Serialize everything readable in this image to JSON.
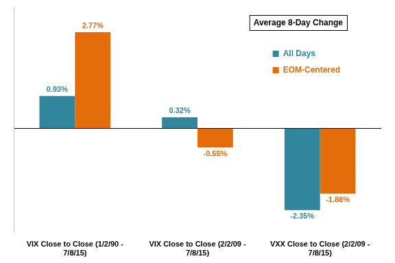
{
  "chart_data": {
    "type": "bar",
    "title": "Average 8-Day Change",
    "categories": [
      "VIX Close to Close (1/2/90 - 7/8/15)",
      "VIX Close to Close (2/2/09 - 7/8/15)",
      "VXX Close to Close (2/2/09 - 7/8/15)"
    ],
    "series": [
      {
        "name": "All Days",
        "color": "#31859c",
        "values": [
          0.93,
          0.32,
          -2.35
        ],
        "value_labels": [
          "0.93%",
          "0.32%",
          "-2.35%"
        ]
      },
      {
        "name": "EOM-Centered",
        "color": "#e46c0a",
        "values": [
          2.77,
          -0.55,
          -1.88
        ],
        "value_labels": [
          "2.77%",
          "-0.55%",
          "-1.88%"
        ]
      }
    ],
    "ylim": [
      -3,
      3.5
    ],
    "yticks": [
      0
    ],
    "legend": "upper right",
    "data_labels": true,
    "tick_labels": "x"
  }
}
